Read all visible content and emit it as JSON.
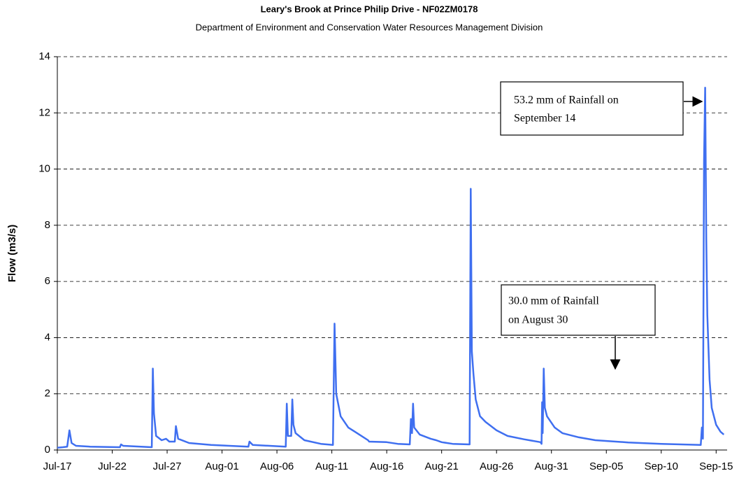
{
  "chart_data": {
    "type": "line",
    "title": "Leary's Brook at Prince Philip Drive - NF02ZM0178",
    "subtitle": "Department of Environment and Conservation Water Resources Management Division",
    "y_label": "Flow (m3/s)",
    "xlim": [
      0,
      61
    ],
    "xticks": [
      {
        "value": 0,
        "label": "Jul-17"
      },
      {
        "value": 5,
        "label": "Jul-22"
      },
      {
        "value": 10,
        "label": "Jul-27"
      },
      {
        "value": 15,
        "label": "Aug-01"
      },
      {
        "value": 20,
        "label": "Aug-06"
      },
      {
        "value": 25,
        "label": "Aug-11"
      },
      {
        "value": 30,
        "label": "Aug-16"
      },
      {
        "value": 35,
        "label": "Aug-21"
      },
      {
        "value": 40,
        "label": "Aug-26"
      },
      {
        "value": 45,
        "label": "Aug-31"
      },
      {
        "value": 50,
        "label": "Sep-05"
      },
      {
        "value": 55,
        "label": "Sep-10"
      },
      {
        "value": 60,
        "label": "Sep-15"
      }
    ],
    "ylim": [
      0,
      14
    ],
    "yticks": [
      0,
      2,
      4,
      6,
      8,
      10,
      12,
      14
    ],
    "grid": true,
    "series": [
      {
        "color": "#3f6ff0",
        "x": [
          0,
          0.5,
          0.9,
          1.1,
          1.3,
          1.7,
          3,
          5.7,
          5.8,
          6,
          8.6,
          8.7,
          8.8,
          9,
          9.5,
          9.9,
          10.2,
          10.7,
          10.8,
          11,
          12,
          14,
          17.4,
          17.5,
          17.8,
          20.8,
          20.9,
          21.0,
          21.3,
          21.4,
          21.5,
          21.7,
          22.5,
          24,
          25.1,
          25.25,
          25.4,
          25.8,
          26.5,
          27.5,
          28.3,
          28.4,
          30,
          31,
          32.1,
          32.2,
          32.3,
          32.4,
          32.5,
          33,
          34,
          34.5,
          35,
          36,
          37.55,
          37.65,
          37.75,
          37.9,
          38.1,
          38.5,
          39,
          40,
          41,
          42.5,
          44,
          44.1,
          44.15,
          44.2,
          44.3,
          44.4,
          44.6,
          45.3,
          46,
          47.5,
          49,
          52,
          55,
          58.6,
          58.7,
          58.8,
          58.9,
          59.0,
          59.1,
          59.2,
          59.4,
          59.6,
          60,
          60.4,
          60.7
        ],
        "values": [
          0.08,
          0.1,
          0.12,
          0.7,
          0.25,
          0.15,
          0.12,
          0.1,
          0.2,
          0.15,
          0.1,
          2.9,
          1.3,
          0.5,
          0.35,
          0.4,
          0.3,
          0.3,
          0.85,
          0.4,
          0.25,
          0.18,
          0.12,
          0.3,
          0.18,
          0.12,
          1.65,
          0.5,
          0.5,
          1.8,
          0.9,
          0.6,
          0.35,
          0.22,
          0.18,
          4.5,
          2.0,
          1.2,
          0.8,
          0.55,
          0.35,
          0.3,
          0.28,
          0.22,
          0.2,
          1.1,
          0.6,
          1.65,
          0.8,
          0.55,
          0.4,
          0.35,
          0.28,
          0.22,
          0.2,
          9.3,
          3.5,
          2.7,
          1.8,
          1.2,
          1.0,
          0.7,
          0.5,
          0.38,
          0.28,
          0.22,
          1.7,
          0.6,
          2.9,
          1.5,
          1.2,
          0.8,
          0.6,
          0.45,
          0.35,
          0.27,
          0.22,
          0.18,
          0.8,
          0.4,
          10.3,
          12.9,
          7.5,
          4.8,
          2.5,
          1.5,
          0.9,
          0.65,
          0.55
        ]
      }
    ],
    "annotations": [
      {
        "lines": [
          "53.2 mm of Rainfall on",
          "September 14"
        ]
      },
      {
        "lines": [
          "30.0 mm of Rainfall",
          "on August 30"
        ]
      }
    ]
  }
}
